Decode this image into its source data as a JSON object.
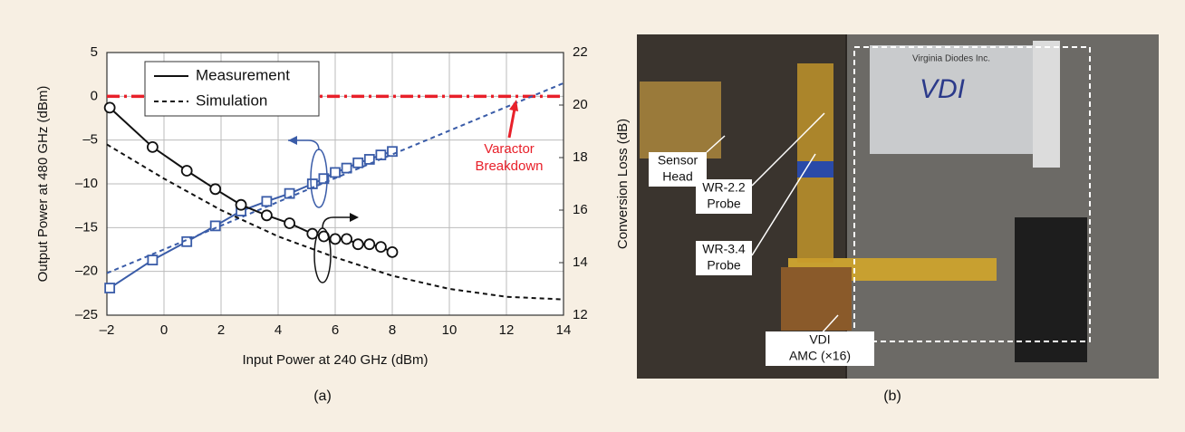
{
  "chart_data": {
    "type": "line",
    "xlabel": "Input Power at 240 GHz (dBm)",
    "ylabel": "Output Power at 480 GHz (dBm)",
    "y2label": "Conversion Loss (dB)",
    "caption": "(a)",
    "xlim": [
      -2,
      14
    ],
    "xticks": [
      {
        "value": -2,
        "label": "–2"
      },
      0,
      2,
      4,
      6,
      8,
      10,
      12,
      14
    ],
    "ylim": [
      -25,
      5
    ],
    "yticks": [
      5,
      0,
      {
        "value": -5,
        "label": "–5"
      },
      {
        "value": -10,
        "label": "–10"
      },
      {
        "value": -15,
        "label": "–15"
      },
      {
        "value": -20,
        "label": "–20"
      },
      {
        "value": -25,
        "label": "–25"
      }
    ],
    "y2lim": [
      12,
      22
    ],
    "y2ticks": [
      12,
      14,
      16,
      18,
      20,
      22
    ],
    "grid": true,
    "legend": "upper left",
    "series": [
      {
        "name": "Measurement",
        "color": "#3a5ca8",
        "dashed": false,
        "marker": "square",
        "x": [
          -1.9,
          -0.4,
          0.8,
          1.8,
          2.7,
          3.6,
          4.4,
          5.2,
          5.6,
          6.0,
          6.4,
          6.8,
          7.2,
          7.6,
          8.0
        ],
        "values": [
          -21.9,
          -18.7,
          -16.6,
          -14.8,
          -13.1,
          -12.0,
          -11.1,
          -10.0,
          -9.4,
          -8.7,
          -8.2,
          -7.6,
          -7.2,
          -6.7,
          -6.3
        ]
      },
      {
        "name": "Simulation",
        "color": "#3a5ca8",
        "dashed": true,
        "marker": null,
        "x": [
          -2,
          14
        ],
        "values": [
          -20.2,
          1.5
        ]
      },
      {
        "name": "Measurement",
        "color": "#111111",
        "dashed": false,
        "marker": "circle",
        "axis": "y2",
        "x": [
          -1.9,
          -0.4,
          0.8,
          1.8,
          2.7,
          3.6,
          4.4,
          5.2,
          5.6,
          6.0,
          6.4,
          6.8,
          7.2,
          7.6,
          8.0
        ],
        "values": [
          19.9,
          18.4,
          17.5,
          16.8,
          16.2,
          15.8,
          15.5,
          15.1,
          15.0,
          14.9,
          14.9,
          14.7,
          14.7,
          14.6,
          14.4
        ]
      },
      {
        "name": "Simulation",
        "color": "#111111",
        "dashed": true,
        "marker": null,
        "axis": "y2",
        "x": [
          -2,
          0,
          2,
          4,
          6,
          8,
          10,
          12,
          14
        ],
        "values": [
          18.5,
          17.2,
          16.0,
          15.0,
          14.2,
          13.5,
          13.0,
          12.7,
          12.6
        ]
      }
    ],
    "threshold": {
      "value": 0,
      "color": "#e8202a",
      "label": [
        "Varactor",
        "Breakdown"
      ]
    }
  },
  "photo": {
    "caption": "(b)",
    "labels": [
      [
        "Sensor",
        "Head"
      ],
      [
        "WR-2.2",
        "Probe"
      ],
      [
        "WR-3.4",
        "Probe"
      ],
      [
        "VDI",
        "AMC (×16)"
      ]
    ],
    "logo": "VDI",
    "maker": "Virginia Diodes Inc."
  }
}
